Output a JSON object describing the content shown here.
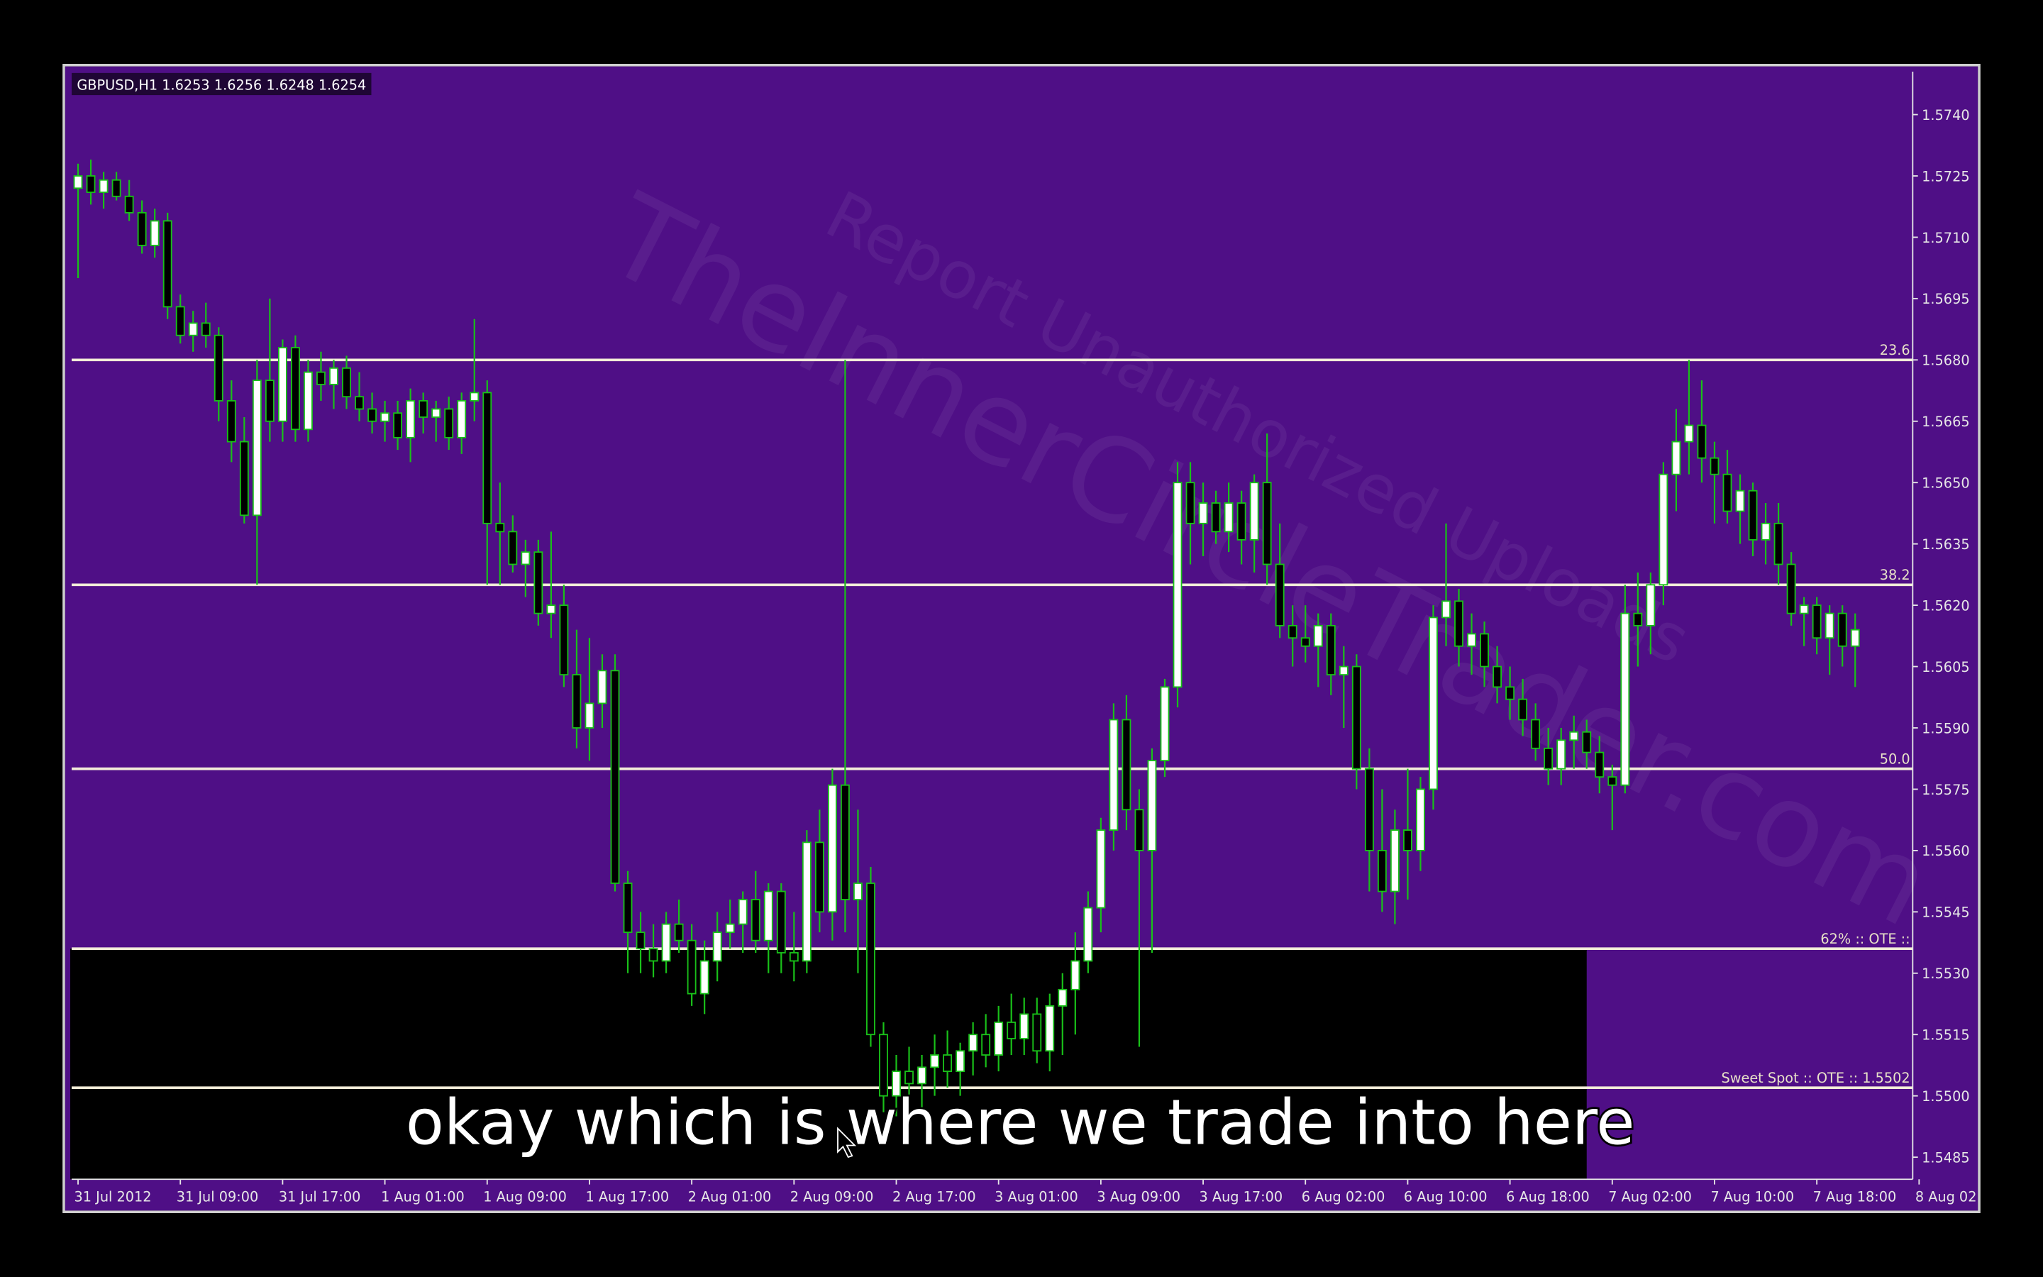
{
  "chart_data": {
    "type": "candlestick",
    "symbol_info": "GBPUSD,H1  1.6253 1.6256 1.6248 1.6254",
    "watermark": "TheInnerCircleTrader.com",
    "watermark_sub": "Report Unauthorized Uploads",
    "subtitle_caption": "okay which is where we trade into here",
    "colors": {
      "background": "#4f0f86",
      "up_body": "#ffffff",
      "down_body": "#000000",
      "wick": "#19c019",
      "level": "#f2ecd8",
      "zone": "#000000"
    },
    "xlim": [
      -0.5,
      143.5
    ],
    "ylim": [
      1.54796,
      1.57505
    ],
    "xticks": [
      {
        "value": 0,
        "label": "31 Jul 2012"
      },
      {
        "value": 8,
        "label": "31 Jul 09:00"
      },
      {
        "value": 16,
        "label": "31 Jul 17:00"
      },
      {
        "value": 24,
        "label": "1 Aug 01:00"
      },
      {
        "value": 32,
        "label": "1 Aug 09:00"
      },
      {
        "value": 40,
        "label": "1 Aug 17:00"
      },
      {
        "value": 48,
        "label": "2 Aug 01:00"
      },
      {
        "value": 56,
        "label": "2 Aug 09:00"
      },
      {
        "value": 64,
        "label": "2 Aug 17:00"
      },
      {
        "value": 72,
        "label": "3 Aug 01:00"
      },
      {
        "value": 80,
        "label": "3 Aug 09:00"
      },
      {
        "value": 88,
        "label": "3 Aug 17:00"
      },
      {
        "value": 96,
        "label": "6 Aug 02:00"
      },
      {
        "value": 104,
        "label": "6 Aug 10:00"
      },
      {
        "value": 112,
        "label": "6 Aug 18:00"
      },
      {
        "value": 120,
        "label": "7 Aug 02:00"
      },
      {
        "value": 128,
        "label": "7 Aug 10:00"
      },
      {
        "value": 136,
        "label": "7 Aug 18:00"
      },
      {
        "value": 144,
        "label": "8 Aug 02:00"
      }
    ],
    "yticks": [
      {
        "value": 1.574,
        "label": "1.5740"
      },
      1.5725,
      {
        "value": 1.571,
        "label": "1.5710"
      },
      1.5695,
      {
        "value": 1.568,
        "label": "1.5680"
      },
      1.5665,
      {
        "value": 1.565,
        "label": "1.5650"
      },
      1.5635,
      {
        "value": 1.562,
        "label": "1.5620"
      },
      1.5605,
      {
        "value": 1.559,
        "label": "1.5590"
      },
      1.5575,
      {
        "value": 1.556,
        "label": "1.5560"
      },
      1.5545,
      {
        "value": 1.553,
        "label": "1.5530"
      },
      1.5515,
      {
        "value": 1.55,
        "label": "1.5500"
      },
      1.5485
    ],
    "levels": [
      {
        "label": "23.6",
        "price": 1.568
      },
      {
        "label": "38.2",
        "price": 1.5625
      },
      {
        "label": "50.0",
        "price": 1.558
      },
      {
        "label": "62% :: OTE ::",
        "price": 1.5536
      },
      {
        "label": "Sweet Spot :: OTE ::  1.5502",
        "price": 1.5502
      }
    ],
    "zone": {
      "x": [
        0,
        118
      ],
      "top": 1.5536
    },
    "candles": [
      [
        1.5722,
        1.5728,
        1.57,
        1.5725
      ],
      [
        1.5725,
        1.5729,
        1.5718,
        1.5721
      ],
      [
        1.5721,
        1.5726,
        1.5717,
        1.5724
      ],
      [
        1.5724,
        1.5726,
        1.5719,
        1.572
      ],
      [
        1.572,
        1.5724,
        1.5714,
        1.5716
      ],
      [
        1.5716,
        1.5719,
        1.5706,
        1.5708
      ],
      [
        1.5708,
        1.5717,
        1.5705,
        1.5714
      ],
      [
        1.5714,
        1.5716,
        1.569,
        1.5693
      ],
      [
        1.5693,
        1.5696,
        1.5684,
        1.5686
      ],
      [
        1.5686,
        1.5692,
        1.5682,
        1.5689
      ],
      [
        1.5689,
        1.5694,
        1.5683,
        1.5686
      ],
      [
        1.5686,
        1.5688,
        1.5665,
        1.567
      ],
      [
        1.567,
        1.5675,
        1.5655,
        1.566
      ],
      [
        1.566,
        1.5666,
        1.564,
        1.5642
      ],
      [
        1.5642,
        1.568,
        1.5625,
        1.5675
      ],
      [
        1.5675,
        1.5695,
        1.566,
        1.5665
      ],
      [
        1.5665,
        1.5685,
        1.566,
        1.5683
      ],
      [
        1.5683,
        1.5686,
        1.566,
        1.5663
      ],
      [
        1.5663,
        1.568,
        1.566,
        1.5677
      ],
      [
        1.5677,
        1.5682,
        1.567,
        1.5674
      ],
      [
        1.5674,
        1.568,
        1.5668,
        1.5678
      ],
      [
        1.5678,
        1.5681,
        1.5668,
        1.5671
      ],
      [
        1.5671,
        1.5677,
        1.5665,
        1.5668
      ],
      [
        1.5668,
        1.5672,
        1.5662,
        1.5665
      ],
      [
        1.5665,
        1.567,
        1.566,
        1.5667
      ],
      [
        1.5667,
        1.567,
        1.5658,
        1.5661
      ],
      [
        1.5661,
        1.5673,
        1.5655,
        1.567
      ],
      [
        1.567,
        1.5672,
        1.5662,
        1.5666
      ],
      [
        1.5666,
        1.567,
        1.566,
        1.5668
      ],
      [
        1.5668,
        1.5671,
        1.5658,
        1.5661
      ],
      [
        1.5661,
        1.5672,
        1.5657,
        1.567
      ],
      [
        1.567,
        1.569,
        1.5665,
        1.5672
      ],
      [
        1.5672,
        1.5675,
        1.5625,
        1.564
      ],
      [
        1.564,
        1.565,
        1.5625,
        1.5638
      ],
      [
        1.5638,
        1.5642,
        1.5628,
        1.563
      ],
      [
        1.563,
        1.5636,
        1.5622,
        1.5633
      ],
      [
        1.5633,
        1.5636,
        1.5615,
        1.5618
      ],
      [
        1.5618,
        1.5638,
        1.5612,
        1.562
      ],
      [
        1.562,
        1.5625,
        1.56,
        1.5603
      ],
      [
        1.5603,
        1.5614,
        1.5585,
        1.559
      ],
      [
        1.559,
        1.5612,
        1.5582,
        1.5596
      ],
      [
        1.5596,
        1.5608,
        1.559,
        1.5604
      ],
      [
        1.5604,
        1.5608,
        1.555,
        1.5552
      ],
      [
        1.5552,
        1.5555,
        1.553,
        1.554
      ],
      [
        1.554,
        1.5545,
        1.553,
        1.5536
      ],
      [
        1.5536,
        1.5542,
        1.5529,
        1.5533
      ],
      [
        1.5533,
        1.5545,
        1.553,
        1.5542
      ],
      [
        1.5542,
        1.5548,
        1.5535,
        1.5538
      ],
      [
        1.5538,
        1.5542,
        1.5522,
        1.5525
      ],
      [
        1.5525,
        1.5538,
        1.552,
        1.5533
      ],
      [
        1.5533,
        1.5545,
        1.5528,
        1.554
      ],
      [
        1.554,
        1.5548,
        1.5536,
        1.5542
      ],
      [
        1.5542,
        1.555,
        1.5535,
        1.5548
      ],
      [
        1.5548,
        1.5555,
        1.5535,
        1.5538
      ],
      [
        1.5538,
        1.5552,
        1.553,
        1.555
      ],
      [
        1.555,
        1.5552,
        1.553,
        1.5535
      ],
      [
        1.5535,
        1.5545,
        1.5528,
        1.5533
      ],
      [
        1.5533,
        1.5565,
        1.553,
        1.5562
      ],
      [
        1.5562,
        1.557,
        1.554,
        1.5545
      ],
      [
        1.5545,
        1.558,
        1.5538,
        1.5576
      ],
      [
        1.5576,
        1.568,
        1.554,
        1.5548
      ],
      [
        1.5548,
        1.557,
        1.553,
        1.5552
      ],
      [
        1.5552,
        1.5556,
        1.5512,
        1.5515
      ],
      [
        1.5515,
        1.5518,
        1.5496,
        1.55
      ],
      [
        1.55,
        1.551,
        1.5495,
        1.5506
      ],
      [
        1.5506,
        1.5512,
        1.5498,
        1.5503
      ],
      [
        1.5503,
        1.551,
        1.5497,
        1.5507
      ],
      [
        1.5507,
        1.5515,
        1.55,
        1.551
      ],
      [
        1.551,
        1.5516,
        1.5502,
        1.5506
      ],
      [
        1.5506,
        1.5513,
        1.55,
        1.5511
      ],
      [
        1.5511,
        1.5518,
        1.5505,
        1.5515
      ],
      [
        1.5515,
        1.552,
        1.5507,
        1.551
      ],
      [
        1.551,
        1.5522,
        1.5506,
        1.5518
      ],
      [
        1.5518,
        1.5525,
        1.551,
        1.5514
      ],
      [
        1.5514,
        1.5524,
        1.551,
        1.552
      ],
      [
        1.552,
        1.5524,
        1.5508,
        1.5511
      ],
      [
        1.5511,
        1.5525,
        1.5506,
        1.5522
      ],
      [
        1.5522,
        1.553,
        1.551,
        1.5526
      ],
      [
        1.5526,
        1.554,
        1.5515,
        1.5533
      ],
      [
        1.5533,
        1.555,
        1.553,
        1.5546
      ],
      [
        1.5546,
        1.5568,
        1.554,
        1.5565
      ],
      [
        1.5565,
        1.5596,
        1.556,
        1.5592
      ],
      [
        1.5592,
        1.5598,
        1.5565,
        1.557
      ],
      [
        1.557,
        1.5575,
        1.5512,
        1.556
      ],
      [
        1.556,
        1.5585,
        1.5535,
        1.5582
      ],
      [
        1.5582,
        1.5602,
        1.5578,
        1.56
      ],
      [
        1.56,
        1.5655,
        1.5595,
        1.565
      ],
      [
        1.565,
        1.5655,
        1.563,
        1.564
      ],
      [
        1.564,
        1.565,
        1.5632,
        1.5645
      ],
      [
        1.5645,
        1.5648,
        1.5635,
        1.5638
      ],
      [
        1.5638,
        1.565,
        1.5633,
        1.5645
      ],
      [
        1.5645,
        1.5648,
        1.563,
        1.5636
      ],
      [
        1.5636,
        1.5652,
        1.5628,
        1.565
      ],
      [
        1.565,
        1.5662,
        1.5625,
        1.563
      ],
      [
        1.563,
        1.564,
        1.5612,
        1.5615
      ],
      [
        1.5615,
        1.562,
        1.5605,
        1.5612
      ],
      [
        1.5612,
        1.562,
        1.5606,
        1.561
      ],
      [
        1.561,
        1.5618,
        1.56,
        1.5615
      ],
      [
        1.5615,
        1.5618,
        1.5598,
        1.5603
      ],
      [
        1.5603,
        1.561,
        1.559,
        1.5605
      ],
      [
        1.5605,
        1.5608,
        1.5575,
        1.558
      ],
      [
        1.558,
        1.5585,
        1.555,
        1.556
      ],
      [
        1.556,
        1.5575,
        1.5545,
        1.555
      ],
      [
        1.555,
        1.557,
        1.5542,
        1.5565
      ],
      [
        1.5565,
        1.558,
        1.5548,
        1.556
      ],
      [
        1.556,
        1.5578,
        1.5555,
        1.5575
      ],
      [
        1.5575,
        1.562,
        1.557,
        1.5617
      ],
      [
        1.5617,
        1.564,
        1.561,
        1.5621
      ],
      [
        1.5621,
        1.5624,
        1.5605,
        1.561
      ],
      [
        1.561,
        1.5618,
        1.5603,
        1.5613
      ],
      [
        1.5613,
        1.5616,
        1.56,
        1.5605
      ],
      [
        1.5605,
        1.561,
        1.5596,
        1.56
      ],
      [
        1.56,
        1.5605,
        1.5592,
        1.5597
      ],
      [
        1.5597,
        1.5602,
        1.5588,
        1.5592
      ],
      [
        1.5592,
        1.5596,
        1.5582,
        1.5585
      ],
      [
        1.5585,
        1.559,
        1.5576,
        1.558
      ],
      [
        1.558,
        1.559,
        1.5576,
        1.5587
      ],
      [
        1.5587,
        1.5593,
        1.558,
        1.5589
      ],
      [
        1.5589,
        1.5592,
        1.558,
        1.5584
      ],
      [
        1.5584,
        1.5588,
        1.5574,
        1.5578
      ],
      [
        1.5578,
        1.5581,
        1.5565,
        1.5576
      ],
      [
        1.5576,
        1.5625,
        1.5574,
        1.5618
      ],
      [
        1.5618,
        1.5628,
        1.5605,
        1.5615
      ],
      [
        1.5615,
        1.5628,
        1.5608,
        1.5625
      ],
      [
        1.5625,
        1.5655,
        1.562,
        1.5652
      ],
      [
        1.5652,
        1.5668,
        1.5643,
        1.566
      ],
      [
        1.566,
        1.568,
        1.5652,
        1.5664
      ],
      [
        1.5664,
        1.5675,
        1.565,
        1.5656
      ],
      [
        1.5656,
        1.566,
        1.564,
        1.5652
      ],
      [
        1.5652,
        1.5658,
        1.564,
        1.5643
      ],
      [
        1.5643,
        1.5652,
        1.5635,
        1.5648
      ],
      [
        1.5648,
        1.565,
        1.5632,
        1.5636
      ],
      [
        1.5636,
        1.5645,
        1.563,
        1.564
      ],
      [
        1.564,
        1.5645,
        1.5625,
        1.563
      ],
      [
        1.563,
        1.5633,
        1.5615,
        1.5618
      ],
      [
        1.5618,
        1.5622,
        1.561,
        1.562
      ],
      [
        1.562,
        1.5622,
        1.5608,
        1.5612
      ],
      [
        1.5612,
        1.562,
        1.5603,
        1.5618
      ],
      [
        1.5618,
        1.562,
        1.5605,
        1.561
      ],
      [
        1.561,
        1.5618,
        1.56,
        1.5614
      ]
    ]
  }
}
